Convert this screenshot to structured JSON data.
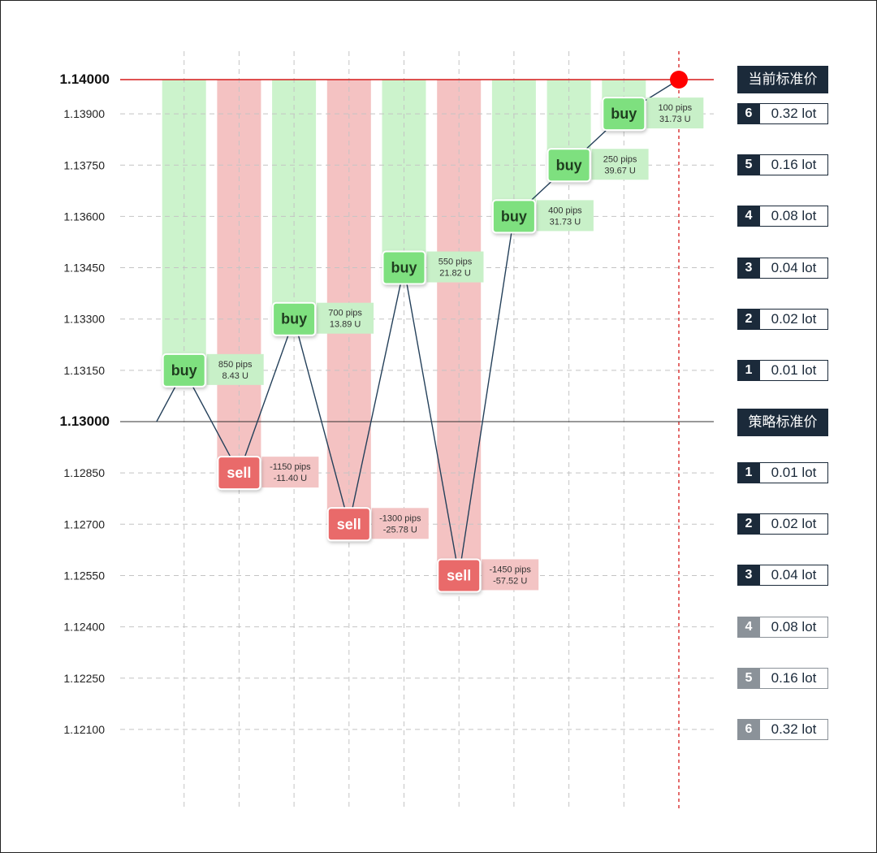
{
  "colors": {
    "buy": "#7ee07f",
    "buy_column": "#ccf3cc",
    "buy_info": "#c8f0c8",
    "sell": "#e96a6a",
    "sell_column": "#f4c2c2",
    "sell_info": "#f3c4c4",
    "current_line": "#d61a1a",
    "dark": "#1b2a3a",
    "muted": "#8b9299"
  },
  "headers": {
    "current": "当前标准价",
    "strategy": "策略标准价"
  },
  "upper_lots": [
    {
      "idx": "6",
      "lot": "0.32 lot",
      "price": 1.139
    },
    {
      "idx": "5",
      "lot": "0.16 lot",
      "price": 1.1375
    },
    {
      "idx": "4",
      "lot": "0.08 lot",
      "price": 1.136
    },
    {
      "idx": "3",
      "lot": "0.04 lot",
      "price": 1.1345
    },
    {
      "idx": "2",
      "lot": "0.02 lot",
      "price": 1.133
    },
    {
      "idx": "1",
      "lot": "0.01 lot",
      "price": 1.1315
    }
  ],
  "lower_lots": [
    {
      "idx": "1",
      "lot": "0.01 lot",
      "price": 1.1285,
      "muted": false
    },
    {
      "idx": "2",
      "lot": "0.02 lot",
      "price": 1.127,
      "muted": false
    },
    {
      "idx": "3",
      "lot": "0.04 lot",
      "price": 1.1255,
      "muted": false
    },
    {
      "idx": "4",
      "lot": "0.08 lot",
      "price": 1.124,
      "muted": true
    },
    {
      "idx": "5",
      "lot": "0.16 lot",
      "price": 1.1225,
      "muted": true
    },
    {
      "idx": "6",
      "lot": "0.32 lot",
      "price": 1.121,
      "muted": true
    }
  ],
  "chart_data": {
    "type": "line",
    "title": "",
    "xlabel": "",
    "ylabel": "",
    "ylim": [
      1.12,
      1.141
    ],
    "grid": true,
    "y_ticks": [
      "1.14000",
      "1.13900",
      "1.13750",
      "1.13600",
      "1.13450",
      "1.13300",
      "1.13150",
      "1.13000",
      "1.12850",
      "1.12700",
      "1.12550",
      "1.12400",
      "1.12250",
      "1.12100"
    ],
    "y_tick_values": [
      1.14,
      1.139,
      1.1375,
      1.136,
      1.1345,
      1.133,
      1.1315,
      1.13,
      1.1285,
      1.127,
      1.1255,
      1.124,
      1.1225,
      1.121
    ],
    "bold_ticks": [
      "1.14000",
      "1.13000"
    ],
    "current_price": 1.14,
    "strategy_price": 1.13,
    "x_grid_count": 10,
    "columns": [
      {
        "slot": 1,
        "kind": "buy",
        "from": 1.1315,
        "to": 1.14
      },
      {
        "slot": 2,
        "kind": "sell",
        "from": 1.1285,
        "to": 1.14
      },
      {
        "slot": 3,
        "kind": "buy",
        "from": 1.133,
        "to": 1.14
      },
      {
        "slot": 4,
        "kind": "sell",
        "from": 1.127,
        "to": 1.14
      },
      {
        "slot": 5,
        "kind": "buy",
        "from": 1.1345,
        "to": 1.14
      },
      {
        "slot": 6,
        "kind": "sell",
        "from": 1.1255,
        "to": 1.14
      },
      {
        "slot": 7,
        "kind": "buy",
        "from": 1.136,
        "to": 1.14
      },
      {
        "slot": 8,
        "kind": "buy",
        "from": 1.1375,
        "to": 1.14
      },
      {
        "slot": 9,
        "kind": "buy",
        "from": 1.139,
        "to": 1.14
      }
    ],
    "path": [
      {
        "slot": 0.5,
        "y": 1.13
      },
      {
        "slot": 1,
        "y": 1.1315
      },
      {
        "slot": 2,
        "y": 1.1285
      },
      {
        "slot": 3,
        "y": 1.133
      },
      {
        "slot": 4,
        "y": 1.127
      },
      {
        "slot": 5,
        "y": 1.1345
      },
      {
        "slot": 6,
        "y": 1.1255
      },
      {
        "slot": 7,
        "y": 1.136
      },
      {
        "slot": 8,
        "y": 1.1375
      },
      {
        "slot": 9,
        "y": 1.139
      },
      {
        "slot": 10,
        "y": 1.14
      }
    ],
    "trades": [
      {
        "slot": 1,
        "y": 1.1315,
        "side": "buy",
        "pips": "850 pips",
        "value": "8.43 U"
      },
      {
        "slot": 2,
        "y": 1.1285,
        "side": "sell",
        "pips": "-1150 pips",
        "value": "-11.40 U"
      },
      {
        "slot": 3,
        "y": 1.133,
        "side": "buy",
        "pips": "700 pips",
        "value": "13.89 U"
      },
      {
        "slot": 4,
        "y": 1.127,
        "side": "sell",
        "pips": "-1300 pips",
        "value": "-25.78 U"
      },
      {
        "slot": 5,
        "y": 1.1345,
        "side": "buy",
        "pips": "550 pips",
        "value": "21.82 U"
      },
      {
        "slot": 6,
        "y": 1.1255,
        "side": "sell",
        "pips": "-1450 pips",
        "value": "-57.52 U"
      },
      {
        "slot": 7,
        "y": 1.136,
        "side": "buy",
        "pips": "400 pips",
        "value": "31.73 U"
      },
      {
        "slot": 8,
        "y": 1.1375,
        "side": "buy",
        "pips": "250 pips",
        "value": "39.67 U"
      },
      {
        "slot": 9,
        "y": 1.139,
        "side": "buy",
        "pips": "100 pips",
        "value": "31.73 U"
      }
    ]
  }
}
